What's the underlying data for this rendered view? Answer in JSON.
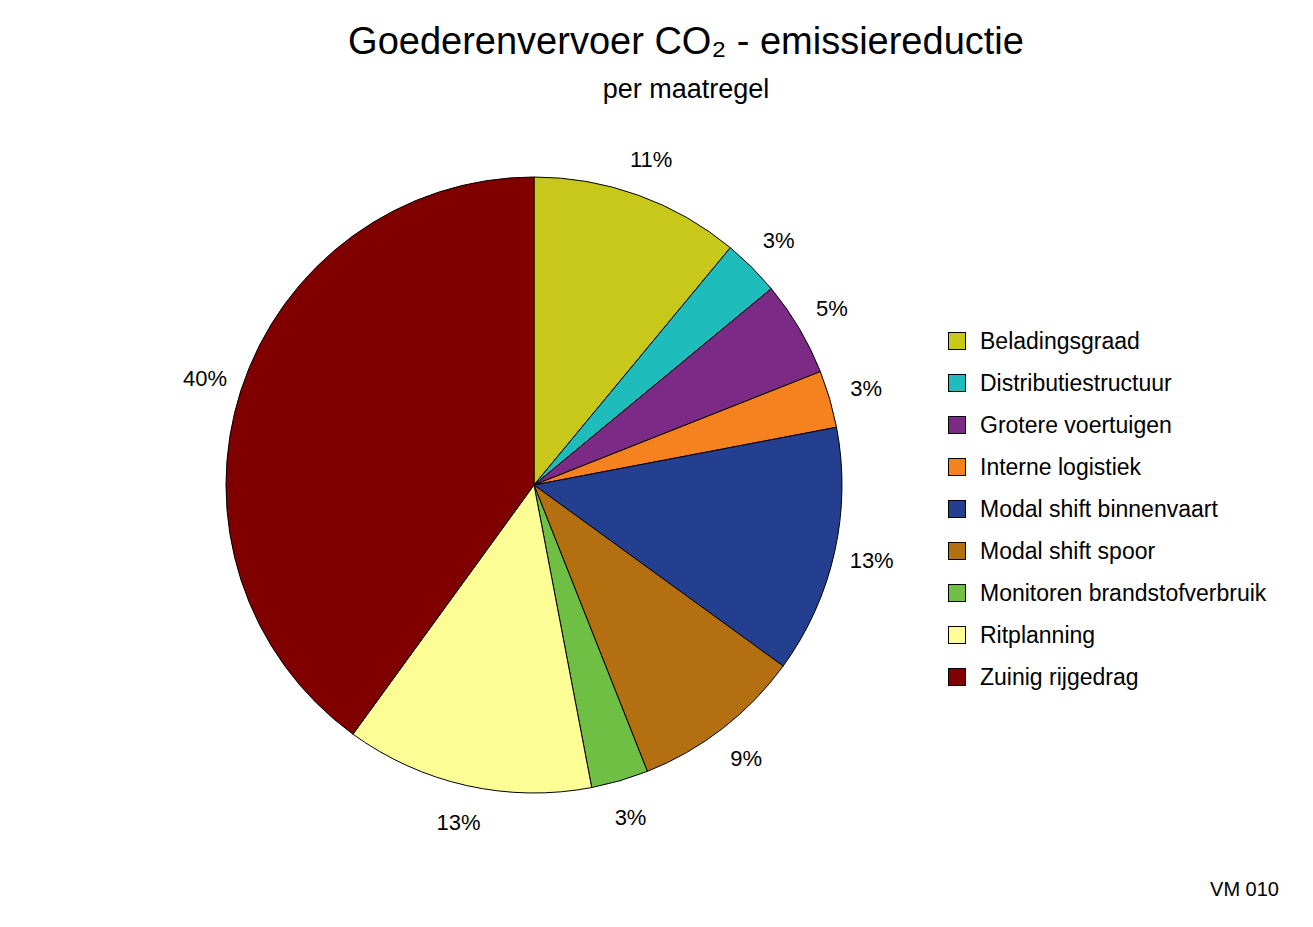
{
  "chart_data": {
    "type": "pie",
    "title": "Goederenvervoer CO₂ - emissiereductie",
    "subtitle": "per maatregel",
    "categories": [
      "Beladingsgraad",
      "Distributiestructuur",
      "Grotere voertuigen",
      "Interne logistiek",
      "Modal shift binnenvaart",
      "Modal shift spoor",
      "Monitoren brandstofverbruik",
      "Ritplanning",
      "Zuinig rijgedrag"
    ],
    "values": [
      11,
      3,
      5,
      3,
      13,
      9,
      3,
      13,
      40
    ],
    "value_labels": [
      "11%",
      "3%",
      "5%",
      "3%",
      "13%",
      "9%",
      "3%",
      "13%",
      "40%"
    ],
    "colors": [
      "#c8c81a",
      "#1fbcbc",
      "#7b2a86",
      "#f5821f",
      "#243f8f",
      "#b36f10",
      "#6fbf44",
      "#fdfd96",
      "#800000"
    ],
    "legend": "right",
    "data_labels": true,
    "annotations": [
      "VM 010"
    ]
  }
}
